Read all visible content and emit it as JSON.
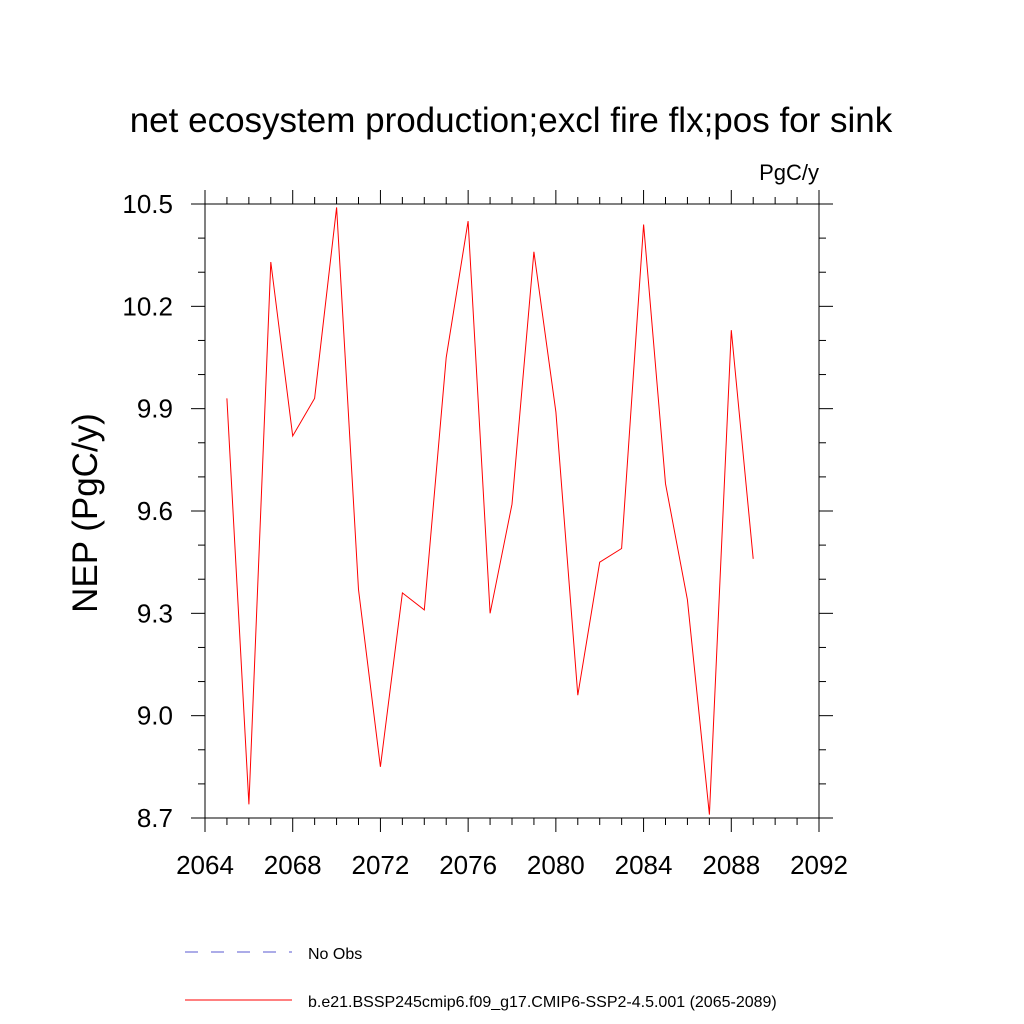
{
  "chart_data": {
    "type": "line",
    "title": "net ecosystem production;excl fire flx;pos for sink",
    "units": "PgC/y",
    "ylabel": "NEP  (PgC/y)",
    "xlabel": "",
    "xlim": [
      2064,
      2092
    ],
    "ylim": [
      8.7,
      10.5
    ],
    "xticks": [
      "2064",
      "2068",
      "2072",
      "2076",
      "2080",
      "2084",
      "2088",
      "2092"
    ],
    "yticks": [
      "8.7",
      "9.0",
      "9.3",
      "9.6",
      "9.9",
      "10.2",
      "10.5"
    ],
    "grid": false,
    "legend_position": "bottom",
    "legend": [
      {
        "label": "No Obs",
        "color": "#5a5ad0",
        "style": "dashed"
      },
      {
        "label": "b.e21.BSSP245cmip6.f09_g17.CMIP6-SSP2-4.5.001 (2065-2089)",
        "color": "#ff0000",
        "style": "solid"
      }
    ],
    "series": [
      {
        "color": "#ff0000",
        "x": [
          2065,
          2066,
          2067,
          2068,
          2069,
          2070,
          2071,
          2072,
          2073,
          2074,
          2075,
          2076,
          2077,
          2078,
          2079,
          2080,
          2081,
          2082,
          2083,
          2084,
          2085,
          2086,
          2087,
          2088,
          2089
        ],
        "y": [
          9.93,
          8.74,
          10.33,
          9.82,
          9.93,
          10.49,
          9.37,
          8.85,
          9.36,
          9.31,
          10.05,
          10.45,
          9.3,
          9.62,
          10.36,
          9.89,
          9.06,
          9.45,
          9.49,
          10.44,
          9.68,
          9.34,
          8.71,
          10.13,
          9.46
        ]
      }
    ]
  }
}
